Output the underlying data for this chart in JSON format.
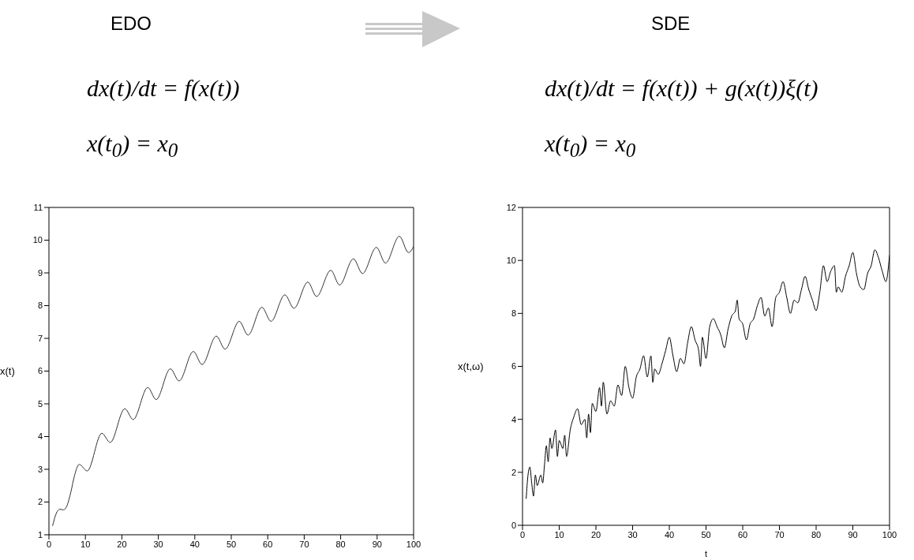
{
  "chart_data": [
    {
      "type": "line",
      "title": "EDO",
      "annotations": [
        "dx(t)/dt = f(x(t))",
        "x(t$_{0}$) = x$_{0}$"
      ],
      "ylabel": "x(t)",
      "color": "#333333",
      "x": [
        1,
        2,
        3,
        4,
        5,
        6,
        7,
        8.3,
        10.5,
        14.5,
        16.8,
        20.8,
        23.1,
        27.1,
        29.4,
        33.3,
        35.7,
        39.6,
        42,
        45.9,
        48.3,
        52.2,
        54.6,
        58.4,
        60.9,
        64.7,
        67.2,
        71,
        73.4,
        77.3,
        79.7,
        83.5,
        86,
        89.8,
        92.3,
        96.1,
        98.6,
        100
      ],
      "values": [
        1.27,
        1.65,
        1.78,
        1.76,
        1.9,
        2.3,
        2.8,
        3.15,
        2.95,
        4.1,
        3.82,
        4.85,
        4.52,
        5.5,
        5.13,
        6.07,
        5.7,
        6.6,
        6.2,
        7.07,
        6.67,
        7.52,
        7.1,
        7.95,
        7.52,
        8.33,
        7.92,
        8.72,
        8.28,
        9.08,
        8.63,
        9.43,
        8.98,
        9.78,
        9.3,
        10.12,
        9.62,
        9.8
      ],
      "xlim": [
        0,
        100
      ],
      "xticks": [
        0,
        10,
        20,
        30,
        40,
        50,
        60,
        70,
        80,
        90,
        100
      ],
      "ylim": [
        1,
        11
      ],
      "yticks": [
        1,
        2,
        3,
        4,
        5,
        6,
        7,
        8,
        9,
        10,
        11
      ]
    },
    {
      "type": "line",
      "title": "SDE",
      "annotations": [
        "dx(t)/dt = f(x(t)) + g(x(t))ξ(t)",
        "x(t$_{0}$) = x$_{0}$"
      ],
      "xlabel": "t",
      "ylabel": "x(t,ω)",
      "color": "#000000",
      "x": [
        1,
        1.5,
        2,
        2.5,
        3,
        3.5,
        4,
        5,
        5.5,
        6,
        6.5,
        7,
        7.5,
        8,
        9,
        9.5,
        10,
        11,
        11.5,
        12,
        13,
        14,
        15,
        16,
        17,
        17.5,
        18,
        18.5,
        19,
        20,
        21,
        21.5,
        22,
        23,
        24,
        25,
        26,
        27,
        28,
        29,
        30,
        31,
        32,
        33,
        34,
        35,
        35.5,
        36,
        37,
        38,
        39,
        40,
        41,
        42,
        43,
        44,
        45,
        46,
        47,
        48,
        48.5,
        49,
        50,
        51,
        52,
        53,
        54,
        55,
        56,
        57,
        58,
        58.5,
        59,
        60,
        61,
        62,
        63,
        64,
        65,
        66,
        67,
        68,
        69,
        70,
        71,
        72,
        73,
        74,
        75,
        76,
        77,
        78,
        79,
        80,
        81,
        82,
        83,
        84,
        85,
        85.5,
        86,
        87,
        88,
        89,
        90,
        91,
        92,
        93,
        94,
        95,
        96,
        97,
        98,
        99,
        100
      ],
      "values": [
        1.0,
        1.9,
        2.2,
        1.6,
        1.1,
        1.9,
        1.5,
        1.9,
        1.6,
        2.3,
        3.0,
        2.4,
        3.3,
        2.9,
        3.6,
        2.6,
        3.2,
        2.9,
        3.4,
        2.6,
        3.6,
        4.1,
        4.4,
        3.8,
        4.0,
        3.3,
        4.2,
        3.5,
        4.6,
        4.3,
        5.2,
        4.5,
        5.4,
        4.2,
        4.7,
        4.5,
        5.3,
        4.9,
        6.0,
        5.2,
        4.8,
        5.6,
        5.9,
        6.4,
        5.6,
        6.4,
        5.4,
        5.9,
        5.7,
        6.1,
        6.6,
        7.1,
        6.4,
        5.8,
        6.3,
        6.1,
        6.9,
        7.5,
        7.0,
        6.6,
        6.0,
        7.1,
        6.3,
        7.5,
        7.8,
        7.5,
        7.2,
        6.7,
        7.4,
        7.9,
        8.1,
        8.5,
        7.8,
        7.6,
        7.0,
        7.6,
        7.8,
        8.3,
        8.6,
        7.9,
        8.2,
        7.5,
        8.6,
        8.8,
        9.2,
        8.6,
        8.0,
        8.5,
        8.4,
        8.9,
        9.4,
        8.9,
        8.5,
        8.1,
        8.8,
        9.8,
        9.2,
        9.6,
        9.8,
        8.8,
        9.0,
        8.8,
        9.4,
        9.8,
        10.3,
        9.5,
        9.0,
        8.9,
        9.5,
        9.8,
        10.4,
        10.1,
        9.6,
        9.2,
        10.2
      ],
      "xlim": [
        0,
        100
      ],
      "xticks": [
        0,
        10,
        20,
        30,
        40,
        50,
        60,
        70,
        80,
        90,
        100
      ],
      "ylim": [
        0,
        12
      ],
      "yticks": [
        0,
        2,
        4,
        6,
        8,
        10,
        12
      ]
    }
  ]
}
